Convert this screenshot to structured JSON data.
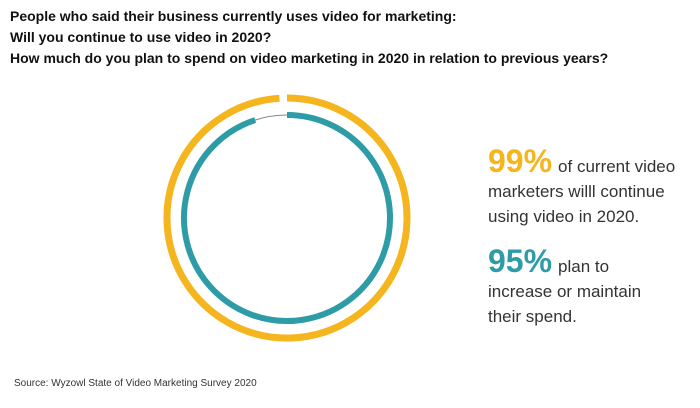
{
  "chart_data": {
    "type": "ring",
    "title": [
      "People who said their business currently uses video for marketing:",
      "Will you continue to use video in 2020?",
      "How much do you plan to spend on video marketing in 2020 in relation to previous years?"
    ],
    "series": [
      {
        "name": "of current video marketers willl continue using video in 2020.",
        "color": "#f5b51e",
        "values": [
          99
        ],
        "value_labels": [
          "99%"
        ]
      },
      {
        "name": "plan to increase or maintain their spend.",
        "color": "#2e9ca6",
        "values": [
          95
        ],
        "value_labels": [
          "95%"
        ]
      }
    ],
    "ylim": [
      0,
      100
    ],
    "source": "Source: Wyzowl State of Video Marketing Survey 2020"
  }
}
